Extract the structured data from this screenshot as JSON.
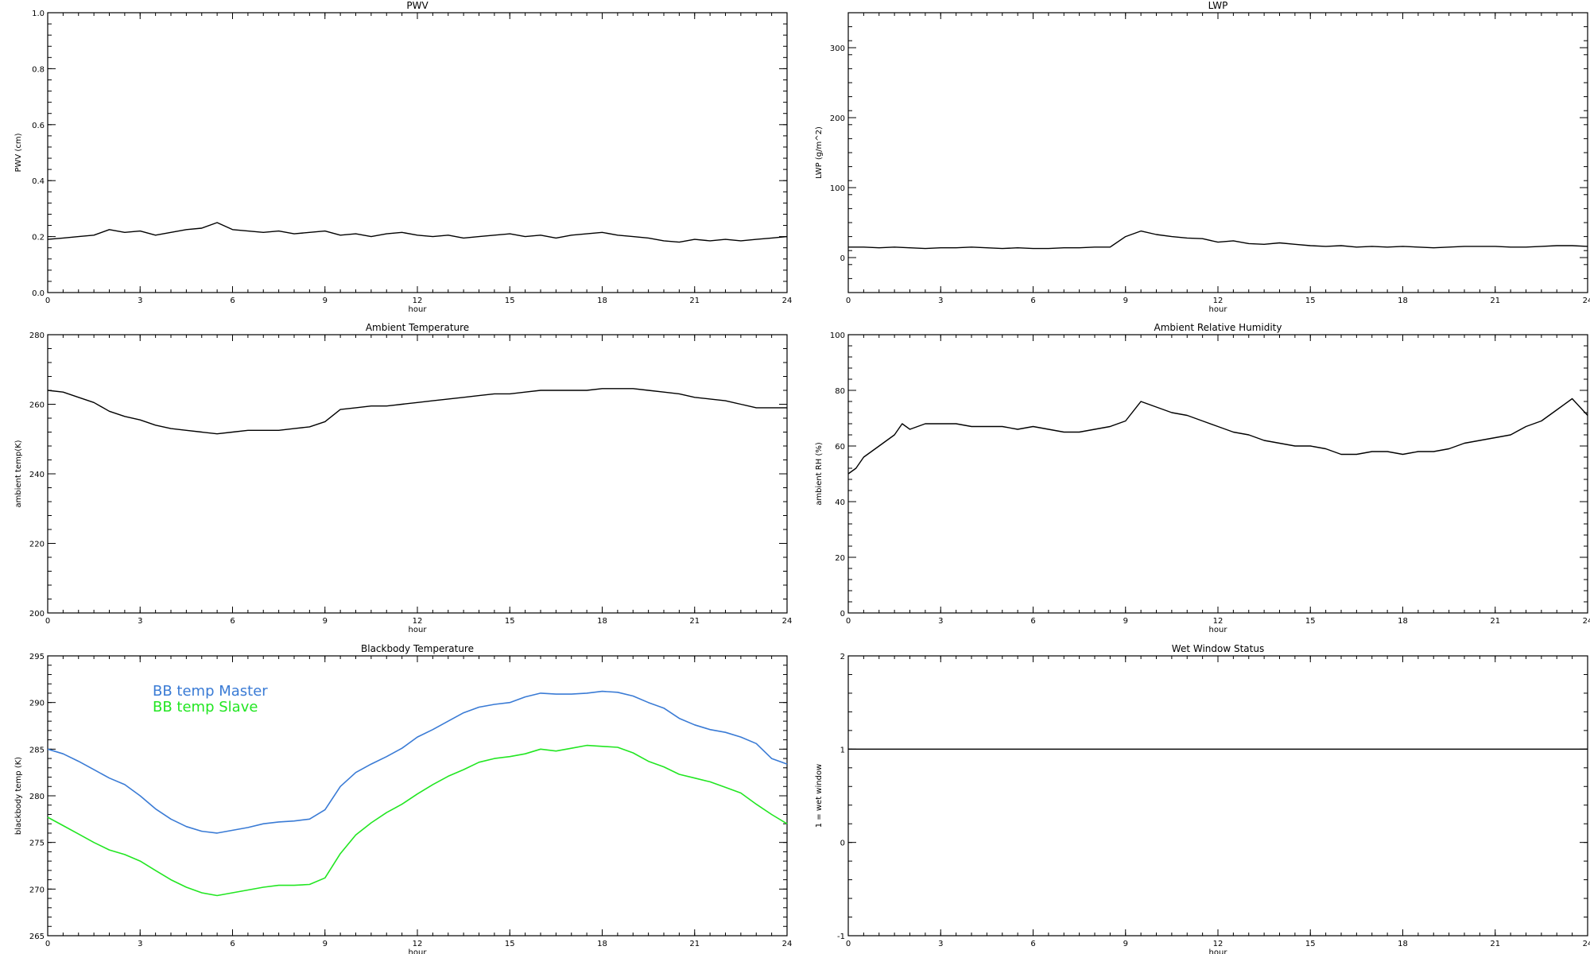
{
  "chart_data": [
    {
      "type": "line",
      "title": "PWV",
      "xlabel": "hour",
      "ylabel": "PWV (cm)",
      "xlim": [
        0,
        24
      ],
      "ylim": [
        0.0,
        1.0
      ],
      "xticks": [
        0,
        3,
        6,
        9,
        12,
        15,
        18,
        21,
        24
      ],
      "xtick_labels": [
        "0",
        "3",
        "6",
        "9",
        "12",
        "15",
        "18",
        "21",
        "24"
      ],
      "yticks": [
        0.0,
        0.2,
        0.4,
        0.6,
        0.8,
        1.0
      ],
      "ytick_labels": [
        "0.0",
        "0.2",
        "0.4",
        "0.6",
        "0.8",
        "1.0"
      ],
      "series": [
        {
          "color": "#000000",
          "x": [
            0,
            0.5,
            1,
            1.5,
            2,
            2.5,
            3,
            3.5,
            4,
            4.5,
            5,
            5.5,
            6,
            6.5,
            7,
            7.5,
            8,
            8.5,
            9,
            9.5,
            10,
            10.5,
            11,
            11.5,
            12,
            12.5,
            13,
            13.5,
            14,
            14.5,
            15,
            15.5,
            16,
            16.5,
            17,
            17.5,
            18,
            18.5,
            19,
            19.5,
            20,
            20.5,
            21,
            21.5,
            22,
            22.5,
            23,
            23.5,
            24
          ],
          "y": [
            0.19,
            0.195,
            0.2,
            0.205,
            0.225,
            0.215,
            0.22,
            0.205,
            0.215,
            0.225,
            0.23,
            0.25,
            0.225,
            0.22,
            0.215,
            0.22,
            0.21,
            0.215,
            0.22,
            0.205,
            0.21,
            0.2,
            0.21,
            0.215,
            0.205,
            0.2,
            0.205,
            0.195,
            0.2,
            0.205,
            0.21,
            0.2,
            0.205,
            0.195,
            0.205,
            0.21,
            0.215,
            0.205,
            0.2,
            0.195,
            0.185,
            0.18,
            0.19,
            0.185,
            0.19,
            0.185,
            0.19,
            0.195,
            0.2
          ]
        }
      ]
    },
    {
      "type": "line",
      "title": "LWP",
      "xlabel": "hour",
      "ylabel": "LWP (g/m^2)",
      "xlim": [
        0,
        24
      ],
      "ylim": [
        -50,
        350
      ],
      "xticks": [
        0,
        3,
        6,
        9,
        12,
        15,
        18,
        21,
        24
      ],
      "xtick_labels": [
        "0",
        "3",
        "6",
        "9",
        "12",
        "15",
        "18",
        "21",
        "24"
      ],
      "yticks": [
        0,
        100,
        200,
        300
      ],
      "ytick_labels": [
        "0",
        "100",
        "200",
        "300"
      ],
      "series": [
        {
          "color": "#000000",
          "x": [
            0,
            0.5,
            1,
            1.5,
            2,
            2.5,
            3,
            3.5,
            4,
            4.5,
            5,
            5.5,
            6,
            6.5,
            7,
            7.5,
            8,
            8.5,
            9,
            9.5,
            10,
            10.5,
            11,
            11.5,
            12,
            12.5,
            13,
            13.5,
            14,
            14.5,
            15,
            15.5,
            16,
            16.5,
            17,
            17.5,
            18,
            18.5,
            19,
            19.5,
            20,
            20.5,
            21,
            21.5,
            22,
            22.5,
            23,
            23.5,
            24
          ],
          "y": [
            15,
            15,
            14,
            15,
            14,
            13,
            14,
            14,
            15,
            14,
            13,
            14,
            13,
            13,
            14,
            14,
            15,
            15,
            30,
            38,
            33,
            30,
            28,
            27,
            22,
            24,
            20,
            19,
            21,
            19,
            17,
            16,
            17,
            15,
            16,
            15,
            16,
            15,
            14,
            15,
            16,
            16,
            16,
            15,
            15,
            16,
            17,
            17,
            16
          ]
        }
      ]
    },
    {
      "type": "line",
      "title": "Ambient Temperature",
      "xlabel": "hour",
      "ylabel": "ambient temp(K)",
      "xlim": [
        0,
        24
      ],
      "ylim": [
        200,
        280
      ],
      "xticks": [
        0,
        3,
        6,
        9,
        12,
        15,
        18,
        21,
        24
      ],
      "xtick_labels": [
        "0",
        "3",
        "6",
        "9",
        "12",
        "15",
        "18",
        "21",
        "24"
      ],
      "yticks": [
        200,
        220,
        240,
        260,
        280
      ],
      "ytick_labels": [
        "200",
        "220",
        "240",
        "260",
        "280"
      ],
      "series": [
        {
          "color": "#000000",
          "x": [
            0,
            0.5,
            1,
            1.5,
            2,
            2.5,
            3,
            3.5,
            4,
            4.5,
            5,
            5.5,
            6,
            6.5,
            7,
            7.5,
            8,
            8.5,
            9,
            9.5,
            10,
            10.5,
            11,
            11.5,
            12,
            12.5,
            13,
            13.5,
            14,
            14.5,
            15,
            15.5,
            16,
            16.5,
            17,
            17.5,
            18,
            18.5,
            19,
            19.5,
            20,
            20.5,
            21,
            21.5,
            22,
            22.5,
            23,
            23.5,
            24
          ],
          "y": [
            264,
            263.5,
            262,
            260.5,
            258,
            256.5,
            255.5,
            254,
            253,
            252.5,
            252,
            251.5,
            252,
            252.5,
            252.5,
            252.5,
            253,
            253.5,
            255,
            258.5,
            259,
            259.5,
            259.5,
            260,
            260.5,
            261,
            261.5,
            262,
            262.5,
            263,
            263,
            263.5,
            264,
            264,
            264,
            264,
            264.5,
            264.5,
            264.5,
            264,
            263.5,
            263,
            262,
            261.5,
            261,
            260,
            259,
            259,
            259
          ]
        }
      ]
    },
    {
      "type": "line",
      "title": "Ambient Relative Humidity",
      "xlabel": "hour",
      "ylabel": "ambient RH (%)",
      "xlim": [
        0,
        24
      ],
      "ylim": [
        0,
        100
      ],
      "xticks": [
        0,
        3,
        6,
        9,
        12,
        15,
        18,
        21,
        24
      ],
      "xtick_labels": [
        "0",
        "3",
        "6",
        "9",
        "12",
        "15",
        "18",
        "21",
        "24"
      ],
      "yticks": [
        0,
        20,
        40,
        60,
        80,
        100
      ],
      "ytick_labels": [
        "0",
        "20",
        "40",
        "60",
        "80",
        "100"
      ],
      "series": [
        {
          "color": "#000000",
          "x": [
            0,
            0.25,
            0.5,
            1,
            1.5,
            1.75,
            2,
            2.5,
            3,
            3.5,
            4,
            4.5,
            5,
            5.5,
            6,
            6.5,
            7,
            7.5,
            8,
            8.5,
            9,
            9.5,
            10,
            10.5,
            11,
            11.5,
            12,
            12.5,
            13,
            13.5,
            14,
            14.5,
            15,
            15.5,
            16,
            16.5,
            17,
            17.5,
            18,
            18.5,
            19,
            19.5,
            20,
            20.5,
            21,
            21.5,
            22,
            22.5,
            23,
            23.5,
            24
          ],
          "y": [
            50,
            52,
            56,
            60,
            64,
            68,
            66,
            68,
            68,
            68,
            67,
            67,
            67,
            66,
            67,
            66,
            65,
            65,
            66,
            67,
            69,
            76,
            74,
            72,
            71,
            69,
            67,
            65,
            64,
            62,
            61,
            60,
            60,
            59,
            57,
            57,
            58,
            58,
            57,
            58,
            58,
            59,
            61,
            62,
            63,
            64,
            67,
            69,
            73,
            77,
            71
          ]
        }
      ]
    },
    {
      "type": "line",
      "title": "Blackbody Temperature",
      "xlabel": "hour",
      "ylabel": "blackbody temp (K)",
      "xlim": [
        0,
        24
      ],
      "ylim": [
        265,
        295
      ],
      "xticks": [
        0,
        3,
        6,
        9,
        12,
        15,
        18,
        21,
        24
      ],
      "xtick_labels": [
        "0",
        "3",
        "6",
        "9",
        "12",
        "15",
        "18",
        "21",
        "24"
      ],
      "yticks": [
        265,
        270,
        275,
        280,
        285,
        290,
        295
      ],
      "ytick_labels": [
        "265",
        "270",
        "275",
        "280",
        "285",
        "290",
        "295"
      ],
      "legend": "top-left",
      "series": [
        {
          "name": "BB temp Master",
          "color": "#3a7bd5",
          "x": [
            0,
            0.5,
            1,
            1.5,
            2,
            2.5,
            3,
            3.5,
            4,
            4.5,
            5,
            5.5,
            6,
            6.5,
            7,
            7.5,
            8,
            8.5,
            9,
            9.5,
            10,
            10.5,
            11,
            11.5,
            12,
            12.5,
            13,
            13.5,
            14,
            14.5,
            15,
            15.5,
            16,
            16.5,
            17,
            17.5,
            18,
            18.5,
            19,
            19.5,
            20,
            20.5,
            21,
            21.5,
            22,
            22.5,
            23,
            23.5,
            24
          ],
          "y": [
            285,
            284.5,
            283.7,
            282.8,
            281.9,
            281.2,
            280,
            278.6,
            277.5,
            276.7,
            276.2,
            276,
            276.3,
            276.6,
            277,
            277.2,
            277.3,
            277.5,
            278.5,
            281,
            282.5,
            283.4,
            284.2,
            285.1,
            286.3,
            287.1,
            288,
            288.9,
            289.5,
            289.8,
            290,
            290.6,
            291,
            290.9,
            290.9,
            291,
            291.2,
            291.1,
            290.7,
            290,
            289.4,
            288.3,
            287.6,
            287.1,
            286.8,
            286.3,
            285.6,
            284,
            283.4
          ]
        },
        {
          "name": "BB temp Slave",
          "color": "#22e622",
          "x": [
            0,
            0.5,
            1,
            1.5,
            2,
            2.5,
            3,
            3.5,
            4,
            4.5,
            5,
            5.5,
            6,
            6.5,
            7,
            7.5,
            8,
            8.5,
            9,
            9.5,
            10,
            10.5,
            11,
            11.5,
            12,
            12.5,
            13,
            13.5,
            14,
            14.5,
            15,
            15.5,
            16,
            16.5,
            17,
            17.5,
            18,
            18.5,
            19,
            19.5,
            20,
            20.5,
            21,
            21.5,
            22,
            22.5,
            23,
            23.5,
            24
          ],
          "y": [
            277.7,
            276.8,
            275.9,
            275,
            274.2,
            273.7,
            273,
            272,
            271,
            270.2,
            269.6,
            269.3,
            269.6,
            269.9,
            270.2,
            270.4,
            270.4,
            270.5,
            271.2,
            273.8,
            275.8,
            277.1,
            278.2,
            279.1,
            280.2,
            281.2,
            282.1,
            282.8,
            283.6,
            284,
            284.2,
            284.5,
            285,
            284.8,
            285.1,
            285.4,
            285.3,
            285.2,
            284.6,
            283.7,
            283.1,
            282.3,
            281.9,
            281.5,
            280.9,
            280.3,
            279.1,
            278,
            277
          ]
        }
      ]
    },
    {
      "type": "line",
      "title": "Wet Window Status",
      "xlabel": "hour",
      "ylabel": "1 = wet window",
      "xlim": [
        0,
        24
      ],
      "ylim": [
        -1,
        2
      ],
      "xticks": [
        0,
        3,
        6,
        9,
        12,
        15,
        18,
        21,
        24
      ],
      "xtick_labels": [
        "0",
        "3",
        "6",
        "9",
        "12",
        "15",
        "18",
        "21",
        "24"
      ],
      "yticks": [
        -1,
        0,
        1,
        2
      ],
      "ytick_labels": [
        "-1",
        "0",
        "1",
        "2"
      ],
      "series": [
        {
          "color": "#000000",
          "x": [
            0,
            24
          ],
          "y": [
            1,
            1
          ]
        }
      ]
    }
  ]
}
